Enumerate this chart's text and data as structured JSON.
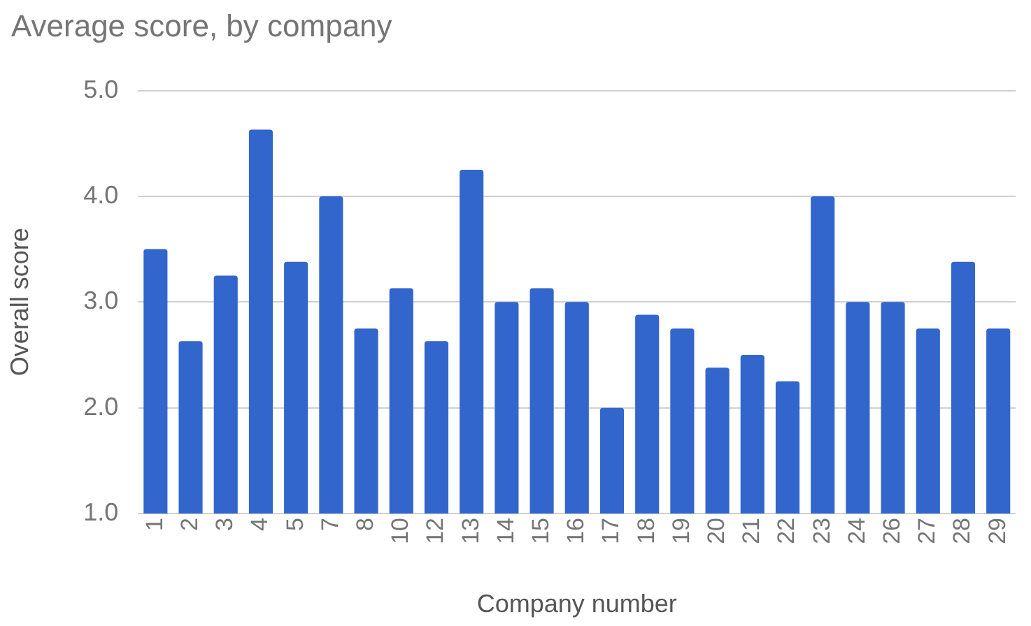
{
  "chart_data": {
    "type": "bar",
    "title": "Average score, by company",
    "xlabel": "Company number",
    "ylabel": "Overall score",
    "categories": [
      "1",
      "2",
      "3",
      "4",
      "5",
      "7",
      "8",
      "10",
      "12",
      "13",
      "14",
      "15",
      "16",
      "17",
      "18",
      "19",
      "20",
      "21",
      "22",
      "23",
      "24",
      "26",
      "27",
      "28",
      "29"
    ],
    "values": [
      3.5,
      2.63,
      3.25,
      4.63,
      3.38,
      4.0,
      2.75,
      3.13,
      2.63,
      4.25,
      3.0,
      3.13,
      3.0,
      2.0,
      2.88,
      2.75,
      2.38,
      2.5,
      2.25,
      4.0,
      3.0,
      3.0,
      2.75,
      3.38,
      2.75
    ],
    "color": "#3366cc",
    "ylim": [
      1,
      5
    ],
    "yticks": [
      {
        "value": 1,
        "label": "1.0"
      },
      {
        "value": 2,
        "label": "2.0"
      },
      {
        "value": 3,
        "label": "3.0"
      },
      {
        "value": 4,
        "label": "4.0"
      },
      {
        "value": 5,
        "label": "5.0"
      }
    ],
    "grid": "y",
    "legend": false
  }
}
